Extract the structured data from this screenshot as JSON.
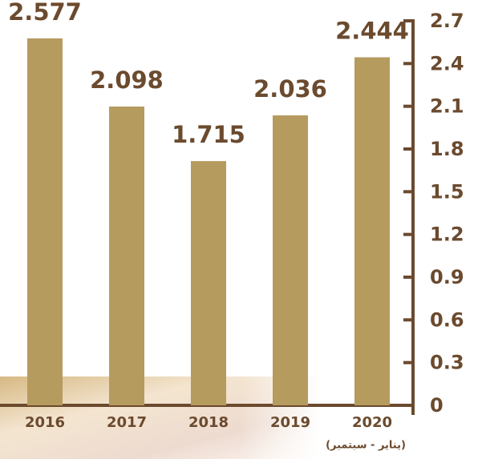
{
  "chart_data": {
    "type": "bar",
    "categories": [
      "2016",
      "2017",
      "2018",
      "2019",
      "2020"
    ],
    "values": [
      2.577,
      2.098,
      1.715,
      2.036,
      2.444
    ],
    "color": "#b69b5f",
    "ylim": [
      0,
      2.7
    ],
    "yticks": [
      0,
      0.3,
      0.6,
      0.9,
      1.2,
      1.5,
      1.8,
      2.1,
      2.4,
      2.7
    ],
    "annotation": "(يناير - سبتمبر)"
  }
}
